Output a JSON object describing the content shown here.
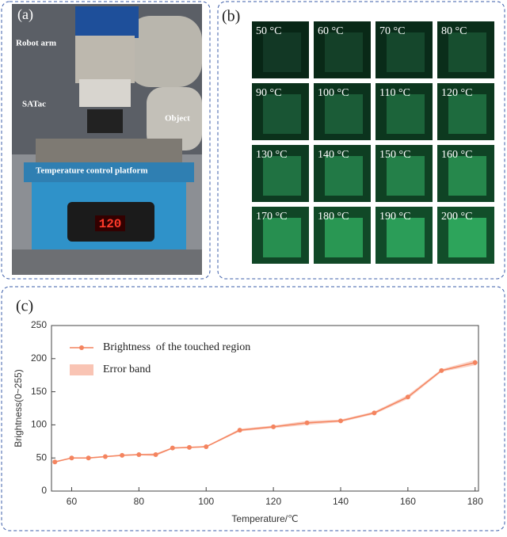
{
  "panel_a": {
    "label": "(a)",
    "annotations": [
      "Robot arm",
      "SATac",
      "Object",
      "Temperature control platform"
    ],
    "display": "120"
  },
  "panel_b": {
    "label": "(b)",
    "tiles": [
      "50 °C",
      "60 °C",
      "70 °C",
      "80 °C",
      "90 °C",
      "100 °C",
      "110 °C",
      "120 °C",
      "130 °C",
      "140 °C",
      "150 °C",
      "160 °C",
      "170 °C",
      "180 °C",
      "190 °C",
      "200 °C"
    ]
  },
  "chart_data": {
    "type": "line",
    "panel_label": "(c)",
    "xlabel": "Temperature/℃",
    "ylabel": "Brightness(0~255)",
    "x": [
      55,
      60,
      65,
      70,
      75,
      80,
      85,
      90,
      95,
      100,
      110,
      120,
      130,
      140,
      150,
      160,
      170,
      180
    ],
    "series": [
      {
        "name": "Brightness  of the touched region",
        "color": "#f4845f",
        "values": [
          44,
          50,
          50,
          52,
          54,
          55,
          55,
          65,
          66,
          67,
          92,
          97,
          103,
          106,
          118,
          142,
          182,
          194
        ],
        "errors": [
          1,
          1,
          1,
          1,
          1,
          1,
          2,
          1,
          1,
          1,
          2,
          2,
          3,
          2,
          2,
          3,
          2,
          4
        ],
        "band_name": "Error band",
        "band_color": "#f9c4b4"
      }
    ],
    "xlim": [
      54,
      181
    ],
    "ylim": [
      0,
      250
    ],
    "xticks": [
      60,
      80,
      100,
      120,
      140,
      160,
      180
    ],
    "yticks": [
      0,
      50,
      100,
      150,
      200,
      250
    ]
  }
}
